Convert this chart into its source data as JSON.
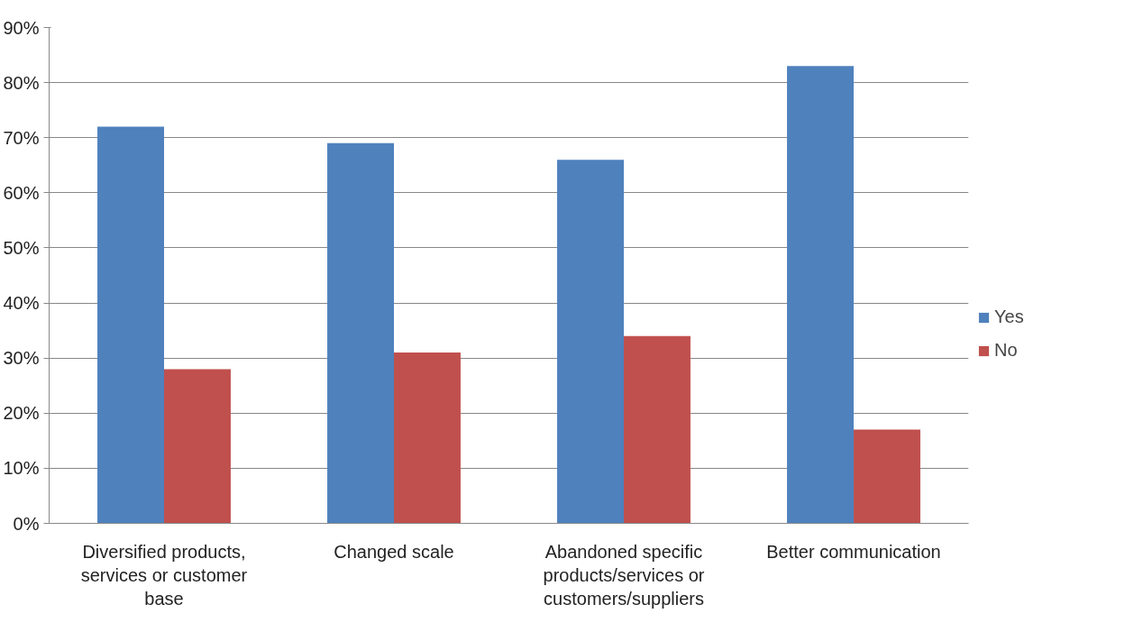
{
  "chart_data": {
    "type": "bar",
    "categories": [
      "Diversified products, services or customer base",
      "Changed scale",
      "Abandoned specific products/services or customers/suppliers",
      "Better communication"
    ],
    "series": [
      {
        "name": "Yes",
        "color": "#4f81bd",
        "values": [
          72,
          69,
          66,
          83
        ]
      },
      {
        "name": "No",
        "color": "#c0504d",
        "values": [
          28,
          31,
          34,
          17
        ]
      }
    ],
    "ylim": [
      0,
      90
    ],
    "yticks": [
      {
        "value": 0,
        "label": "0%"
      },
      {
        "value": 10,
        "label": "10%"
      },
      {
        "value": 20,
        "label": "20%"
      },
      {
        "value": 30,
        "label": "30%"
      },
      {
        "value": 40,
        "label": "40%"
      },
      {
        "value": 50,
        "label": "50%"
      },
      {
        "value": 60,
        "label": "60%"
      },
      {
        "value": 70,
        "label": "70%"
      },
      {
        "value": 80,
        "label": "80%"
      },
      {
        "value": 90,
        "label": "90%"
      }
    ],
    "grid": "y",
    "legend": "right"
  }
}
